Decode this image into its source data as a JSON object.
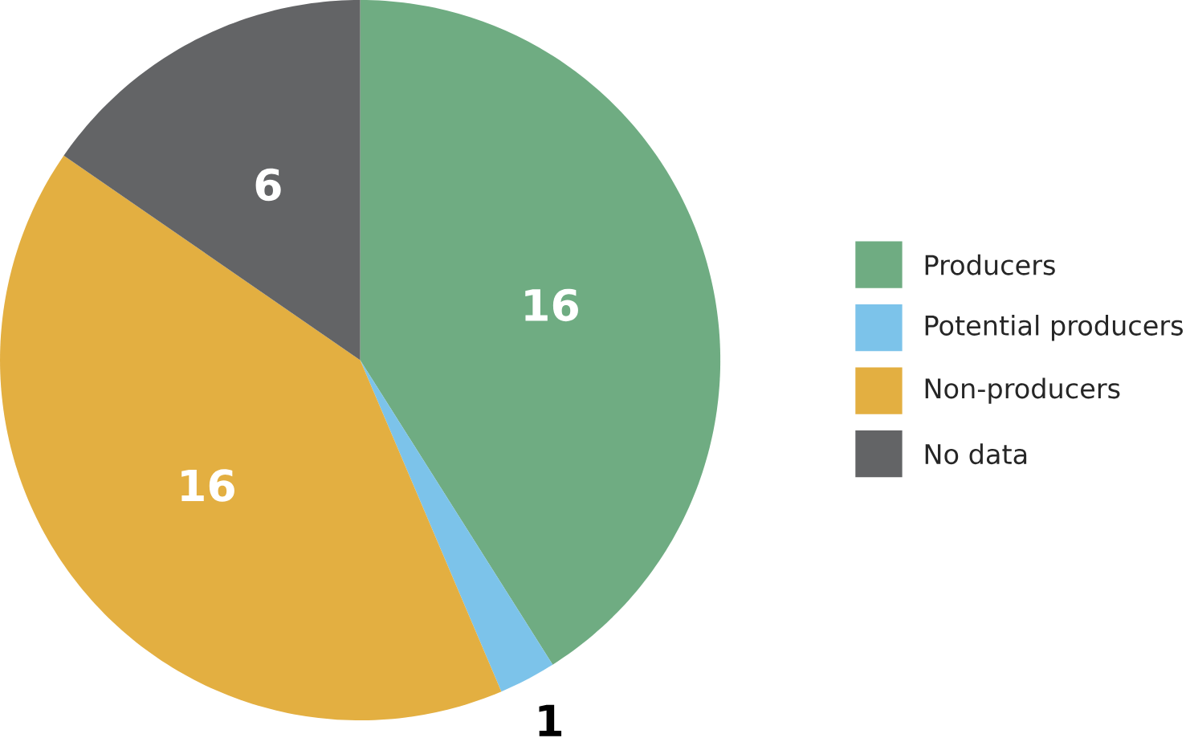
{
  "chart_data": {
    "type": "pie",
    "categories": [
      "Producers",
      "Potential producers",
      "Non-producers",
      "No data"
    ],
    "values": [
      16,
      1,
      16,
      6
    ],
    "colors": [
      "#6fac82",
      "#7cc3ea",
      "#e3af41",
      "#636466"
    ],
    "data_labels": true,
    "legend": "right"
  }
}
